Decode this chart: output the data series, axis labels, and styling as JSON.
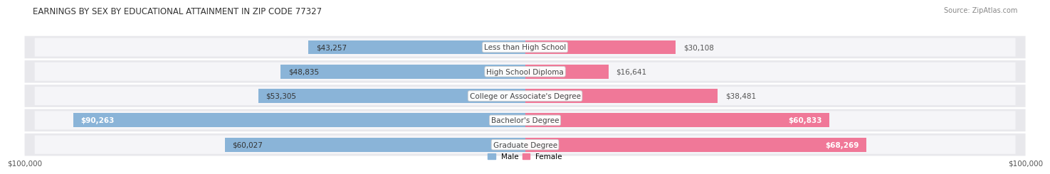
{
  "title": "EARNINGS BY SEX BY EDUCATIONAL ATTAINMENT IN ZIP CODE 77327",
  "source": "Source: ZipAtlas.com",
  "categories": [
    "Less than High School",
    "High School Diploma",
    "College or Associate's Degree",
    "Bachelor's Degree",
    "Graduate Degree"
  ],
  "male_values": [
    43257,
    48835,
    53305,
    90263,
    60027
  ],
  "female_values": [
    30108,
    16641,
    38481,
    60833,
    68269
  ],
  "male_color": "#8ab4d8",
  "female_color": "#f07898",
  "row_bg_color": "#e8e8ec",
  "row_inner_color": "#f5f5f8",
  "max_value": 100000,
  "xlabel_left": "$100,000",
  "xlabel_right": "$100,000",
  "legend_male": "Male",
  "legend_female": "Female",
  "title_fontsize": 8.5,
  "source_fontsize": 7,
  "label_fontsize": 7.5,
  "bar_height": 0.58
}
